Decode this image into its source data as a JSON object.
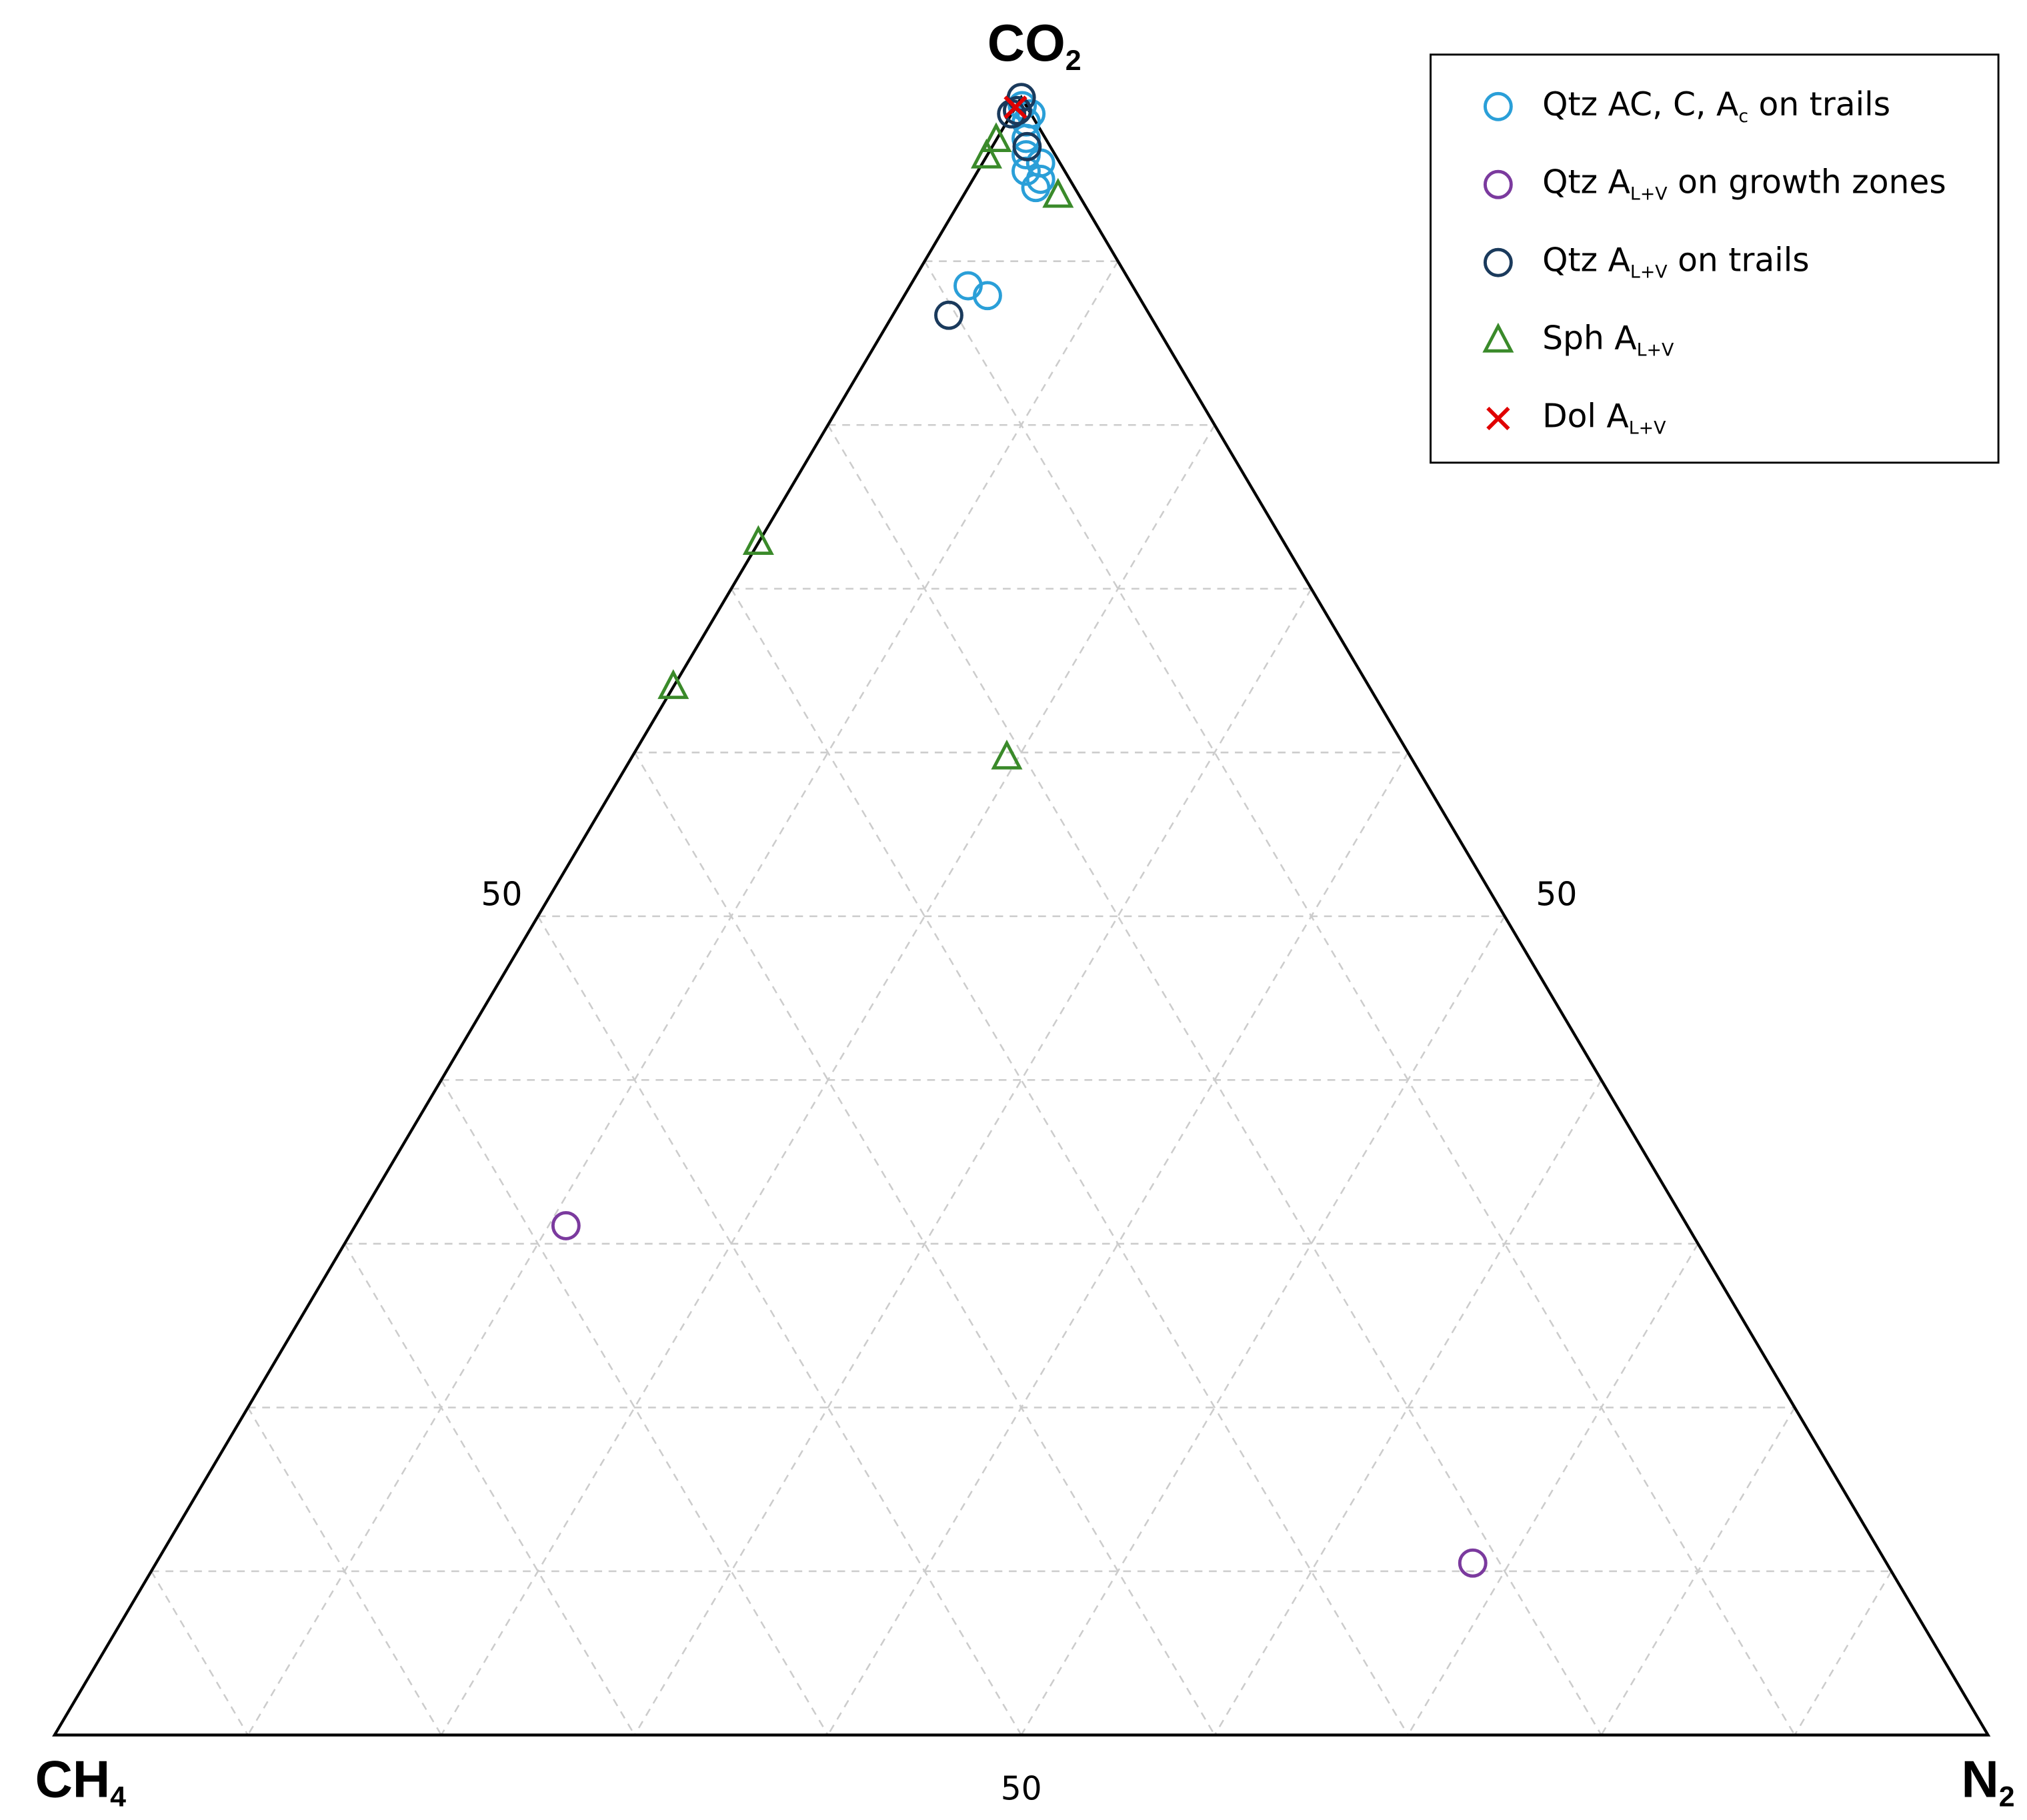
{
  "chart_data": {
    "type": "ternary",
    "axes": [
      {
        "label": [
          "CO",
          {
            "sub": "2"
          }
        ],
        "ticks": [
          50
        ]
      },
      {
        "label": [
          "CH",
          {
            "sub": "4"
          }
        ],
        "ticks": [
          50
        ]
      },
      {
        "label": [
          "N",
          {
            "sub": "2"
          }
        ],
        "ticks": [
          50
        ]
      }
    ],
    "grid_ticks": [
      10,
      20,
      30,
      40,
      50,
      60,
      70,
      80,
      90
    ],
    "grid": true,
    "legend": "upper right",
    "series": [
      {
        "name": [
          "Qtz AC, C, A",
          {
            "sub": "c"
          },
          " on trails"
        ],
        "color": "#2a9fd8",
        "marker": "circle",
        "values": [
          [
            99.5,
            0.2,
            0.3
          ],
          [
            99,
            0,
            1
          ],
          [
            98.5,
            0.5,
            1
          ],
          [
            97.5,
            1,
            1.5
          ],
          [
            96.5,
            1.5,
            2
          ],
          [
            96,
            1,
            3
          ],
          [
            95.5,
            2,
            2.5
          ],
          [
            95,
            1.5,
            3.5
          ],
          [
            94.5,
            2,
            3.5
          ],
          [
            88.5,
            8.5,
            3
          ],
          [
            87.9,
            7.8,
            4.3
          ]
        ]
      },
      {
        "name": [
          "Qtz A",
          {
            "sub": "L+V"
          },
          " on growth zones"
        ],
        "color": "#7b3a9e",
        "marker": "circle",
        "values": [
          [
            31.1,
            58,
            10.9
          ],
          [
            10.5,
            21.4,
            68.1
          ]
        ]
      },
      {
        "name": [
          "Qtz A",
          {
            "sub": "L+V"
          },
          " on trails"
        ],
        "color": "#1a3a5c",
        "marker": "circle",
        "values": [
          [
            100,
            0,
            0
          ],
          [
            99.2,
            0.6,
            0.2
          ],
          [
            99,
            1,
            0
          ],
          [
            97,
            1.2,
            1.8
          ],
          [
            86.7,
            10.4,
            2.9
          ]
        ]
      },
      {
        "name": [
          "Sph A",
          {
            "sub": "L+V"
          }
        ],
        "color": "#3a8a2a",
        "marker": "triangle",
        "values": [
          [
            96.4,
            3.6,
            0
          ],
          [
            97.4,
            2.6,
            0
          ],
          [
            94,
            1.1,
            4.9
          ],
          [
            72.8,
            27.2,
            0
          ],
          [
            64,
            36,
            0
          ],
          [
            59.7,
            20.9,
            19.4
          ]
        ]
      },
      {
        "name": [
          "Dol A",
          {
            "sub": "L+V"
          }
        ],
        "color": "#e00000",
        "marker": "x",
        "values": [
          [
            99.4,
            0.6,
            0
          ]
        ]
      }
    ]
  }
}
